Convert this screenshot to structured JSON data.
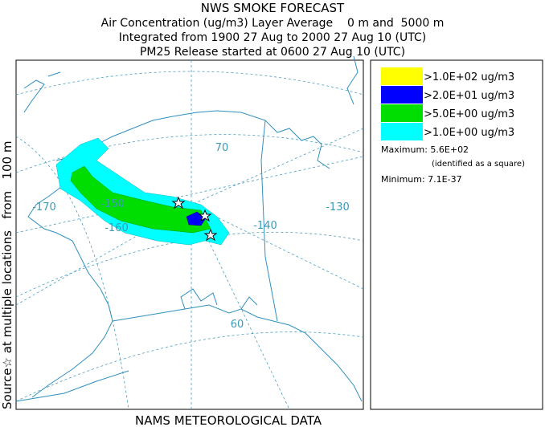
{
  "header": {
    "title": "NWS SMOKE FORECAST",
    "lines": [
      "Air Concentration (ug/m3) Layer Average    0 m and  5000 m",
      "Integrated from 1900 27 Aug to 2000 27 Aug 10 (UTC)",
      "PM25 Release started at 0600 27 Aug 10 (UTC)"
    ]
  },
  "side_label": "Source☆ at multiple locations   from   100 m",
  "map_labels": {
    "longitudes": [
      "-170",
      "-160",
      "-150",
      "-140",
      "-130"
    ],
    "latitudes": [
      "70",
      "60"
    ]
  },
  "legend": {
    "items": [
      {
        "label": ">1.0E+02 ug/m3",
        "color": "#ffff00"
      },
      {
        "label": ">2.0E+01 ug/m3",
        "color": "#0000ff"
      },
      {
        "label": ">5.0E+00 ug/m3",
        "color": "#00dd00"
      },
      {
        "label": ">1.0E+00 ug/m3",
        "color": "#00ffff"
      }
    ],
    "maximum": "Maximum: 5.6E+02",
    "maximum_note": "(identified as a square)",
    "minimum": "Minimum: 7.1E-37"
  },
  "footer": "NAMS METEOROLOGICAL DATA"
}
